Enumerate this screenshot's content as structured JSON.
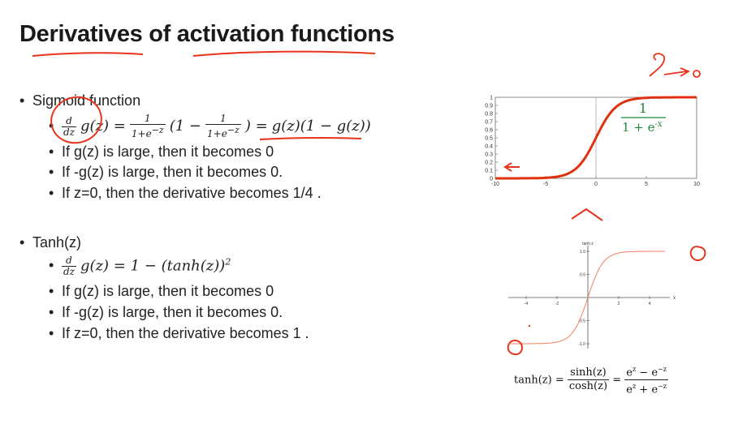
{
  "slide": {
    "title": "Derivatives of activation functions"
  },
  "sigmoid_section": {
    "heading": "Sigmoid function",
    "derivative": {
      "d": "d",
      "dz": "dz",
      "gz": "g(z) =",
      "one": "1",
      "den": "1+e",
      "exp": "−z",
      "paren_open": "(1 −",
      "paren_close": ") =",
      "result": "g(z)(1 − g(z))"
    },
    "bullets": [
      "If g(z) is large, then it becomes 0",
      "If -g(z) is large, then it becomes 0.",
      "If z=0, then the derivative becomes 1/4 ."
    ]
  },
  "tanh_section": {
    "heading": "Tanh(z)",
    "derivative": {
      "d": "d",
      "dz": "dz",
      "expr": "g(z) = 1 − (tanh(z))",
      "sq": "2"
    },
    "bullets": [
      "If g(z) is large, then it becomes 0",
      "If -g(z) is large, then it becomes 0.",
      "If z=0, then the derivative becomes 1 ."
    ]
  },
  "sigmoid_chart": {
    "y_ticks": [
      "0",
      "0.1",
      "0.2",
      "0.3",
      "0.4",
      "0.5",
      "0.6",
      "0.7",
      "0.8",
      "0.9",
      "1"
    ],
    "x_ticks": [
      "-10",
      "-5",
      "0",
      "5",
      "10"
    ],
    "label_num": "1",
    "label_den": "1 + e",
    "label_exp": "-x",
    "curve_color": "#e03010",
    "label_color": "#1f8a3a"
  },
  "tanh_chart": {
    "title": "tanh x",
    "y_ticks": [
      "1.0",
      "0.5",
      "-0.5",
      "-1.0"
    ],
    "x_ticks": [
      "-4",
      "-2",
      "2",
      "4"
    ],
    "x_axis_label": "x",
    "curve_color": "#f08060"
  },
  "tanh_formula": {
    "lhs": "tanh(z) =",
    "n1": "sinh(z)",
    "d1": "cosh(z)",
    "eq": "=",
    "n2": "e",
    "n2b": " − e",
    "d2": "e",
    "d2b": " + e",
    "z": "z",
    "mz": "−z"
  },
  "annotations": {
    "ink_color": "#e8341c"
  },
  "chart_data": [
    {
      "type": "line",
      "series": [
        {
          "name": "",
          "x": [
            -10,
            -8,
            -6,
            -4,
            -2,
            -1,
            0,
            1,
            2,
            4,
            6,
            8,
            10
          ],
          "y": [
            5e-05,
            0.0003,
            0.0025,
            0.018,
            0.119,
            0.269,
            0.5,
            0.731,
            0.881,
            0.982,
            0.9975,
            0.9997,
            0.99995
          ]
        }
      ],
      "xlim": [
        -10,
        10
      ],
      "ylim": [
        0,
        1
      ],
      "grid": false
    },
    {
      "type": "line",
      "title": "tanh x",
      "series": [
        {
          "name": "",
          "x": [
            -5,
            -4,
            -3,
            -2,
            -1,
            -0.5,
            0,
            0.5,
            1,
            2,
            3,
            4,
            5
          ],
          "y": [
            -1.0,
            -0.999,
            -0.995,
            -0.964,
            -0.762,
            -0.462,
            0,
            0.462,
            0.762,
            0.964,
            0.995,
            0.999,
            1.0
          ]
        }
      ],
      "xlim": [
        -5,
        5
      ],
      "ylim": [
        -1,
        1
      ],
      "grid": false
    }
  ]
}
